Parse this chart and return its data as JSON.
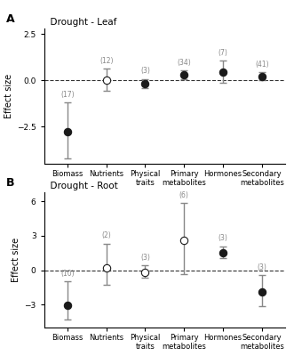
{
  "panel_A": {
    "title": "Drought - Leaf",
    "label": "A",
    "categories": [
      "Biomass",
      "Nutrients",
      "Physical\ntraits",
      "Primary\nmetabolites",
      "Hormones",
      "Secondary\nmetabolites"
    ],
    "means": [
      -2.75,
      0.02,
      -0.18,
      0.28,
      0.45,
      0.22
    ],
    "ci_low": [
      -4.2,
      -0.55,
      -0.42,
      0.05,
      -0.15,
      0.01
    ],
    "ci_high": [
      -1.2,
      0.62,
      0.07,
      0.52,
      1.05,
      0.44
    ],
    "n_labels": [
      "(17)",
      "(12)",
      "(3)",
      "(34)",
      "(7)",
      "(41)"
    ],
    "filled": [
      true,
      false,
      true,
      true,
      true,
      true
    ],
    "ylim": [
      -4.5,
      2.8
    ],
    "yticks": [
      -2.5,
      0.0,
      2.5
    ],
    "ylabel": "Effect size"
  },
  "panel_B": {
    "title": "Drought - Root",
    "label": "B",
    "categories": [
      "Biomass",
      "Nutrients",
      "Physical\ntraits",
      "Primary\nmetabolites",
      "Hormones",
      "Secondary\nmetabolites"
    ],
    "means": [
      -3.05,
      0.2,
      -0.15,
      2.6,
      1.55,
      -1.9
    ],
    "ci_low": [
      -4.3,
      -1.3,
      -0.65,
      -0.35,
      1.05,
      -3.15
    ],
    "ci_high": [
      -1.0,
      2.3,
      0.42,
      5.85,
      2.1,
      -0.45
    ],
    "n_labels": [
      "(10)",
      "(2)",
      "(3)",
      "(6)",
      "(3)",
      "(3)"
    ],
    "filled": [
      true,
      false,
      false,
      false,
      true,
      true
    ],
    "ylim": [
      -5.0,
      6.8
    ],
    "yticks": [
      -3,
      0,
      3,
      6
    ],
    "ylabel": "Effect size"
  },
  "dot_color_filled": "#1a1a1a",
  "dot_color_open": "#ffffff",
  "dot_edgecolor": "#1a1a1a",
  "errorbar_color": "#888888",
  "dashed_color": "#333333",
  "n_label_color": "#888888",
  "dot_size": 6,
  "errorbar_lw": 1.0,
  "capsize": 3,
  "background_color": "#ffffff"
}
